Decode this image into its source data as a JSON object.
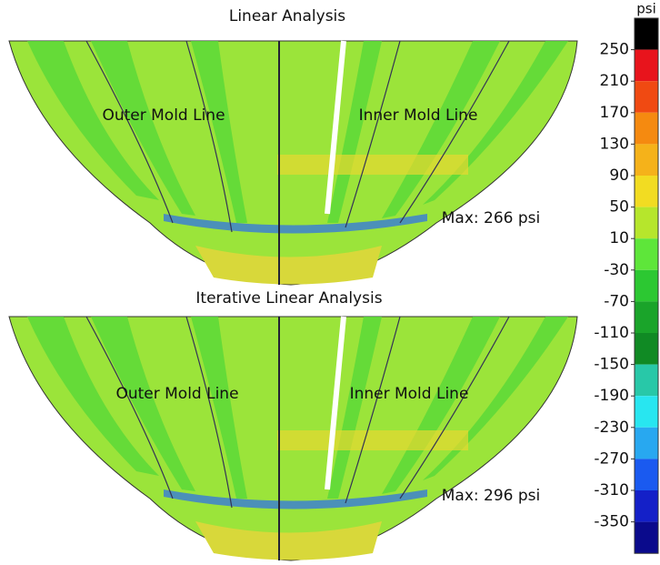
{
  "panels": [
    {
      "title": "Linear Analysis",
      "outer_label": "Outer Mold Line",
      "inner_label": "Inner Mold Line",
      "max": "Max: 266 psi"
    },
    {
      "title": "Iterative Linear Analysis",
      "outer_label": "Outer Mold Line",
      "inner_label": "Inner Mold Line",
      "max": "Max: 296 psi"
    }
  ],
  "colorbar": {
    "unit": "psi",
    "labels": [
      "250",
      "210",
      "170",
      "130",
      "90",
      "50",
      "10",
      "-30",
      "-70",
      "-110",
      "-150",
      "-190",
      "-230",
      "-270",
      "-310",
      "-350"
    ]
  }
}
